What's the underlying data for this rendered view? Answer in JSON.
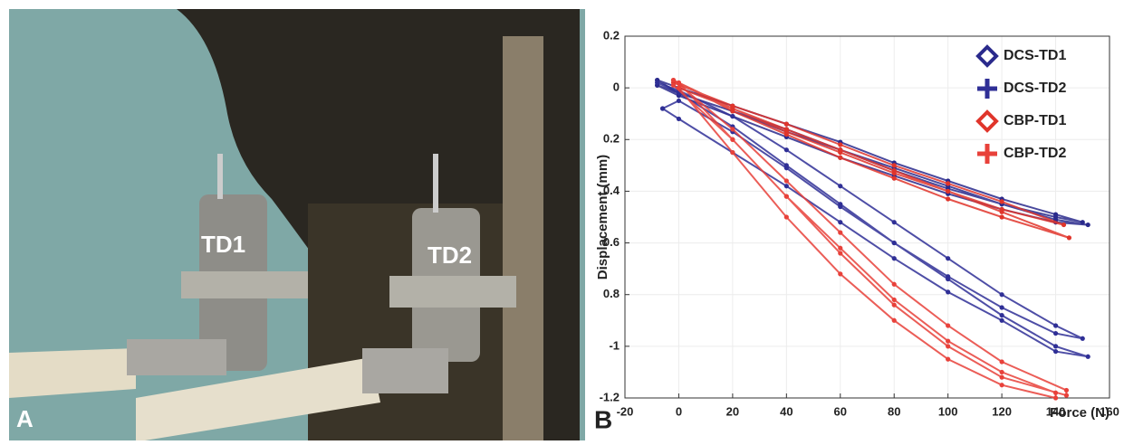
{
  "photo": {
    "panel_label": "A",
    "labels": [
      "TD1",
      "TD2"
    ]
  },
  "chart_data": {
    "type": "line",
    "panel_label": "B",
    "x_label": "Force (N)",
    "y_label": "Displacement (mm)",
    "xlim": [
      -20,
      160
    ],
    "xticks": [
      -20,
      0,
      20,
      40,
      60,
      80,
      100,
      120,
      140,
      160
    ],
    "ylim": [
      -1.2,
      0.2
    ],
    "yticks": [
      0.2,
      0,
      {
        "value": -0.2,
        "label": "0.2"
      },
      {
        "value": -0.4,
        "label": "0.4"
      },
      {
        "value": -0.6,
        "label": "0.6"
      },
      {
        "value": -0.8,
        "label": "0.8"
      },
      -1,
      -1.2
    ],
    "grid": true,
    "legend": "upper right",
    "series": [
      {
        "name": "DCS-TD1",
        "color": "#2a2a8c",
        "marker": "diamond",
        "x": [
          -8,
          0,
          20,
          40,
          60,
          80,
          100,
          120,
          140,
          150,
          140,
          120,
          100,
          80,
          60,
          40,
          20,
          0,
          -8,
          null,
          -8,
          0,
          20,
          40,
          60,
          80,
          100,
          120,
          140,
          152,
          140,
          120,
          100,
          80,
          60,
          40,
          20,
          0,
          -8
        ],
        "values": [
          0.03,
          0,
          -0.07,
          -0.14,
          -0.21,
          -0.29,
          -0.36,
          -0.43,
          -0.49,
          -0.52,
          -0.5,
          -0.45,
          -0.39,
          -0.32,
          -0.24,
          -0.17,
          -0.09,
          -0.02,
          0.03,
          null,
          0.01,
          -0.02,
          -0.09,
          -0.16,
          -0.24,
          -0.31,
          -0.38,
          -0.45,
          -0.51,
          -0.53,
          -0.52,
          -0.47,
          -0.41,
          -0.34,
          -0.27,
          -0.19,
          -0.11,
          -0.03,
          0.01
        ]
      },
      {
        "name": "DCS-TD2",
        "color": "#2f2f96",
        "marker": "plus",
        "x": [
          -8,
          0,
          20,
          40,
          60,
          80,
          100,
          120,
          140,
          150,
          140,
          120,
          100,
          80,
          60,
          40,
          20,
          0,
          -8,
          null,
          -6,
          0,
          20,
          40,
          60,
          80,
          100,
          120,
          140,
          152,
          140,
          120,
          100,
          80,
          60,
          40,
          20,
          0,
          -6
        ],
        "values": [
          0.02,
          -0.02,
          -0.15,
          -0.3,
          -0.45,
          -0.6,
          -0.73,
          -0.85,
          -0.95,
          -0.97,
          -0.92,
          -0.8,
          -0.66,
          -0.52,
          -0.38,
          -0.24,
          -0.11,
          -0.01,
          0.02,
          null,
          -0.08,
          -0.12,
          -0.25,
          -0.38,
          -0.52,
          -0.66,
          -0.79,
          -0.9,
          -1.02,
          -1.04,
          -1.0,
          -0.88,
          -0.74,
          -0.6,
          -0.46,
          -0.31,
          -0.17,
          -0.05,
          -0.08
        ]
      },
      {
        "name": "CBP-TD1",
        "color": "#e0352b",
        "marker": "diamond",
        "x": [
          0,
          20,
          40,
          60,
          80,
          100,
          120,
          145,
          120,
          100,
          80,
          60,
          40,
          20,
          0,
          null,
          -2,
          20,
          40,
          60,
          80,
          100,
          120,
          143,
          120,
          100,
          80,
          60,
          40,
          20,
          -2
        ],
        "values": [
          0,
          -0.08,
          -0.16,
          -0.24,
          -0.32,
          -0.4,
          -0.48,
          -0.58,
          -0.5,
          -0.43,
          -0.35,
          -0.27,
          -0.18,
          -0.09,
          0.02,
          null,
          0.02,
          -0.07,
          -0.14,
          -0.22,
          -0.3,
          -0.37,
          -0.44,
          -0.53,
          -0.47,
          -0.4,
          -0.33,
          -0.25,
          -0.17,
          -0.08,
          0.03
        ]
      },
      {
        "name": "CBP-TD2",
        "color": "#e8413a",
        "marker": "plus",
        "x": [
          0,
          20,
          40,
          60,
          80,
          100,
          120,
          140,
          140,
          120,
          100,
          80,
          60,
          40,
          20,
          0,
          null,
          -2,
          20,
          40,
          60,
          80,
          100,
          120,
          144,
          144,
          120,
          100,
          80,
          60,
          40,
          20,
          -2
        ],
        "values": [
          0,
          -0.25,
          -0.5,
          -0.72,
          -0.9,
          -1.05,
          -1.15,
          -1.2,
          -1.18,
          -1.1,
          -0.98,
          -0.82,
          -0.62,
          -0.42,
          -0.2,
          0.02,
          null,
          0.01,
          -0.2,
          -0.42,
          -0.64,
          -0.84,
          -1.0,
          -1.12,
          -1.19,
          -1.17,
          -1.06,
          -0.92,
          -0.76,
          -0.56,
          -0.36,
          -0.16,
          0.03
        ]
      }
    ]
  }
}
